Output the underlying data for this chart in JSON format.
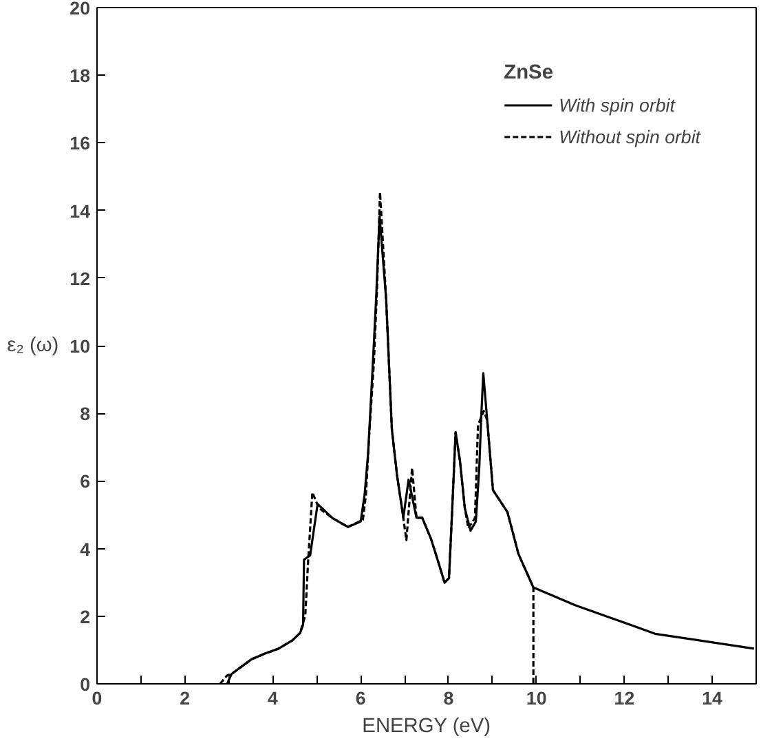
{
  "chart_data": {
    "type": "line",
    "xlabel": "ENERGY (eV)",
    "ylabel": "ε₂ (ω)",
    "legend_title": "ZnSe",
    "legend": "top right",
    "grid": false,
    "marker": "none",
    "xlim": [
      0,
      15
    ],
    "ylim": [
      0,
      20
    ],
    "xticks": [
      0,
      {
        "value": 1,
        "label": null
      },
      2,
      {
        "value": 3,
        "label": null
      },
      4,
      {
        "value": 5,
        "label": null
      },
      6,
      {
        "value": 7,
        "label": null
      },
      8,
      {
        "value": 9,
        "label": null
      },
      10,
      {
        "value": 11,
        "label": null
      },
      12,
      {
        "value": 13,
        "label": null
      },
      14
    ],
    "yticks": [
      0,
      2,
      4,
      6,
      8,
      10,
      12,
      14,
      16,
      18,
      20
    ],
    "series": [
      {
        "name": "With spin orbit",
        "color": "#000000",
        "line_style": "solid",
        "x": [
          2.96,
          3.06,
          3.52,
          3.83,
          4.13,
          4.44,
          4.62,
          4.69,
          4.71,
          4.85,
          5.02,
          5.36,
          5.71,
          6.0,
          6.09,
          6.17,
          6.27,
          6.35,
          6.43,
          6.58,
          6.71,
          6.83,
          6.94,
          6.97,
          7.09,
          7.27,
          7.4,
          7.6,
          7.75,
          7.91,
          8.01,
          8.08,
          8.16,
          8.26,
          8.37,
          8.5,
          8.62,
          8.7,
          8.74,
          8.79,
          8.88,
          9.01,
          9.34,
          9.59,
          9.93,
          10.87,
          11.02,
          12.19,
          12.7,
          14.95
        ],
        "values": [
          0,
          0.29,
          0.73,
          0.9,
          1.04,
          1.28,
          1.5,
          1.75,
          3.67,
          3.8,
          5.32,
          4.9,
          4.64,
          4.8,
          5.6,
          6.83,
          9.3,
          11.36,
          13.83,
          11.36,
          7.52,
          6.14,
          5.19,
          4.91,
          6.04,
          4.91,
          4.91,
          4.29,
          3.67,
          2.99,
          3.13,
          5.08,
          7.44,
          6.59,
          5.19,
          4.53,
          4.8,
          6.42,
          7.79,
          9.19,
          7.79,
          5.73,
          5.08,
          3.84,
          2.85,
          2.33,
          2.26,
          1.72,
          1.48,
          1.04
        ]
      },
      {
        "name": "Without spin orbit",
        "color": "#000000",
        "line_style": "dashed",
        "x": [
          2.8,
          2.96,
          3.06,
          3.52,
          3.83,
          4.13,
          4.44,
          4.62,
          4.74,
          4.8,
          4.9,
          5.05,
          5.36,
          5.71,
          6.05,
          6.12,
          6.2,
          6.3,
          6.37,
          6.44,
          6.58,
          6.71,
          6.83,
          6.94,
          7.04,
          7.17,
          7.27,
          7.4,
          7.6,
          7.75,
          7.91,
          8.01,
          8.08,
          8.16,
          8.26,
          8.37,
          8.45,
          8.6,
          8.67,
          8.8,
          8.88,
          9.01,
          9.34,
          9.59,
          9.93,
          9.93
        ],
        "values": [
          0,
          0.25,
          0.29,
          0.73,
          0.9,
          1.04,
          1.28,
          1.5,
          2.03,
          3.53,
          5.66,
          5.2,
          4.9,
          4.64,
          4.85,
          5.6,
          7.5,
          9.5,
          11.6,
          14.54,
          11.36,
          7.52,
          6.14,
          5.19,
          4.25,
          6.38,
          4.91,
          4.91,
          4.29,
          3.67,
          2.99,
          3.13,
          5.08,
          7.44,
          6.59,
          5.19,
          4.6,
          4.9,
          7.65,
          8.07,
          7.79,
          5.73,
          5.08,
          3.84,
          2.85,
          0
        ]
      }
    ]
  }
}
